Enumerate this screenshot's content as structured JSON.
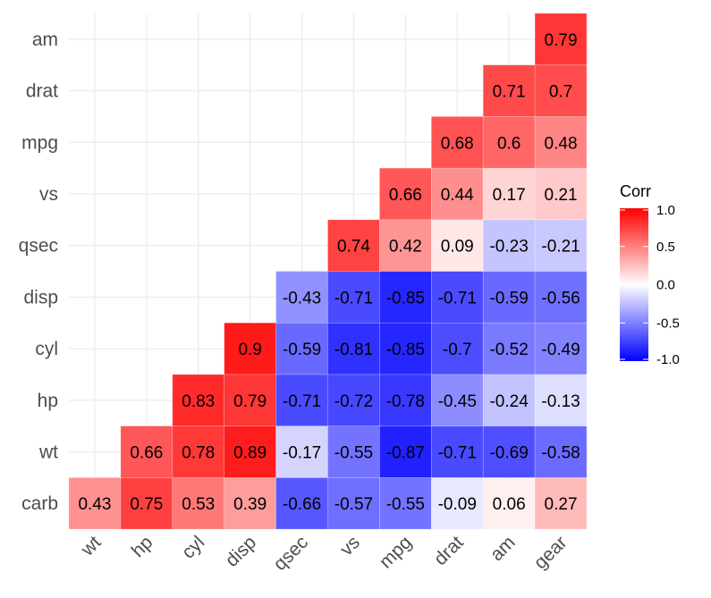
{
  "chart_data": {
    "type": "heatmap",
    "x_categories": [
      "wt",
      "hp",
      "cyl",
      "disp",
      "qsec",
      "vs",
      "mpg",
      "drat",
      "am",
      "gear"
    ],
    "y_categories": [
      "carb",
      "wt",
      "hp",
      "cyl",
      "disp",
      "qsec",
      "vs",
      "mpg",
      "drat",
      "am"
    ],
    "values": [
      [
        0.43,
        0.75,
        0.53,
        0.39,
        -0.66,
        -0.57,
        -0.55,
        -0.09,
        0.06,
        0.27
      ],
      [
        null,
        0.66,
        0.78,
        0.89,
        -0.17,
        -0.55,
        -0.87,
        -0.71,
        -0.69,
        -0.58
      ],
      [
        null,
        null,
        0.83,
        0.79,
        -0.71,
        -0.72,
        -0.78,
        -0.45,
        -0.24,
        -0.13
      ],
      [
        null,
        null,
        null,
        0.9,
        -0.59,
        -0.81,
        -0.85,
        -0.7,
        -0.52,
        -0.49
      ],
      [
        null,
        null,
        null,
        null,
        -0.43,
        -0.71,
        -0.85,
        -0.71,
        -0.59,
        -0.56
      ],
      [
        null,
        null,
        null,
        null,
        null,
        0.74,
        0.42,
        0.09,
        -0.23,
        -0.21
      ],
      [
        null,
        null,
        null,
        null,
        null,
        null,
        0.66,
        0.44,
        0.17,
        0.21
      ],
      [
        null,
        null,
        null,
        null,
        null,
        null,
        null,
        0.68,
        0.6,
        0.48
      ],
      [
        null,
        null,
        null,
        null,
        null,
        null,
        null,
        null,
        0.71,
        0.7
      ],
      [
        null,
        null,
        null,
        null,
        null,
        null,
        null,
        null,
        null,
        0.79
      ]
    ],
    "legend": {
      "title": "Corr",
      "ticks": [
        "1.0",
        "0.5",
        "0.0",
        "-0.5",
        "-1.0"
      ],
      "tick_values": [
        1.0,
        0.5,
        0.0,
        -0.5,
        -1.0
      ],
      "range": [
        -1,
        1
      ],
      "placement": "right"
    },
    "colors": {
      "low": "#0000ff",
      "mid": "#ffffff",
      "high": "#ff0000"
    },
    "grid": true
  }
}
